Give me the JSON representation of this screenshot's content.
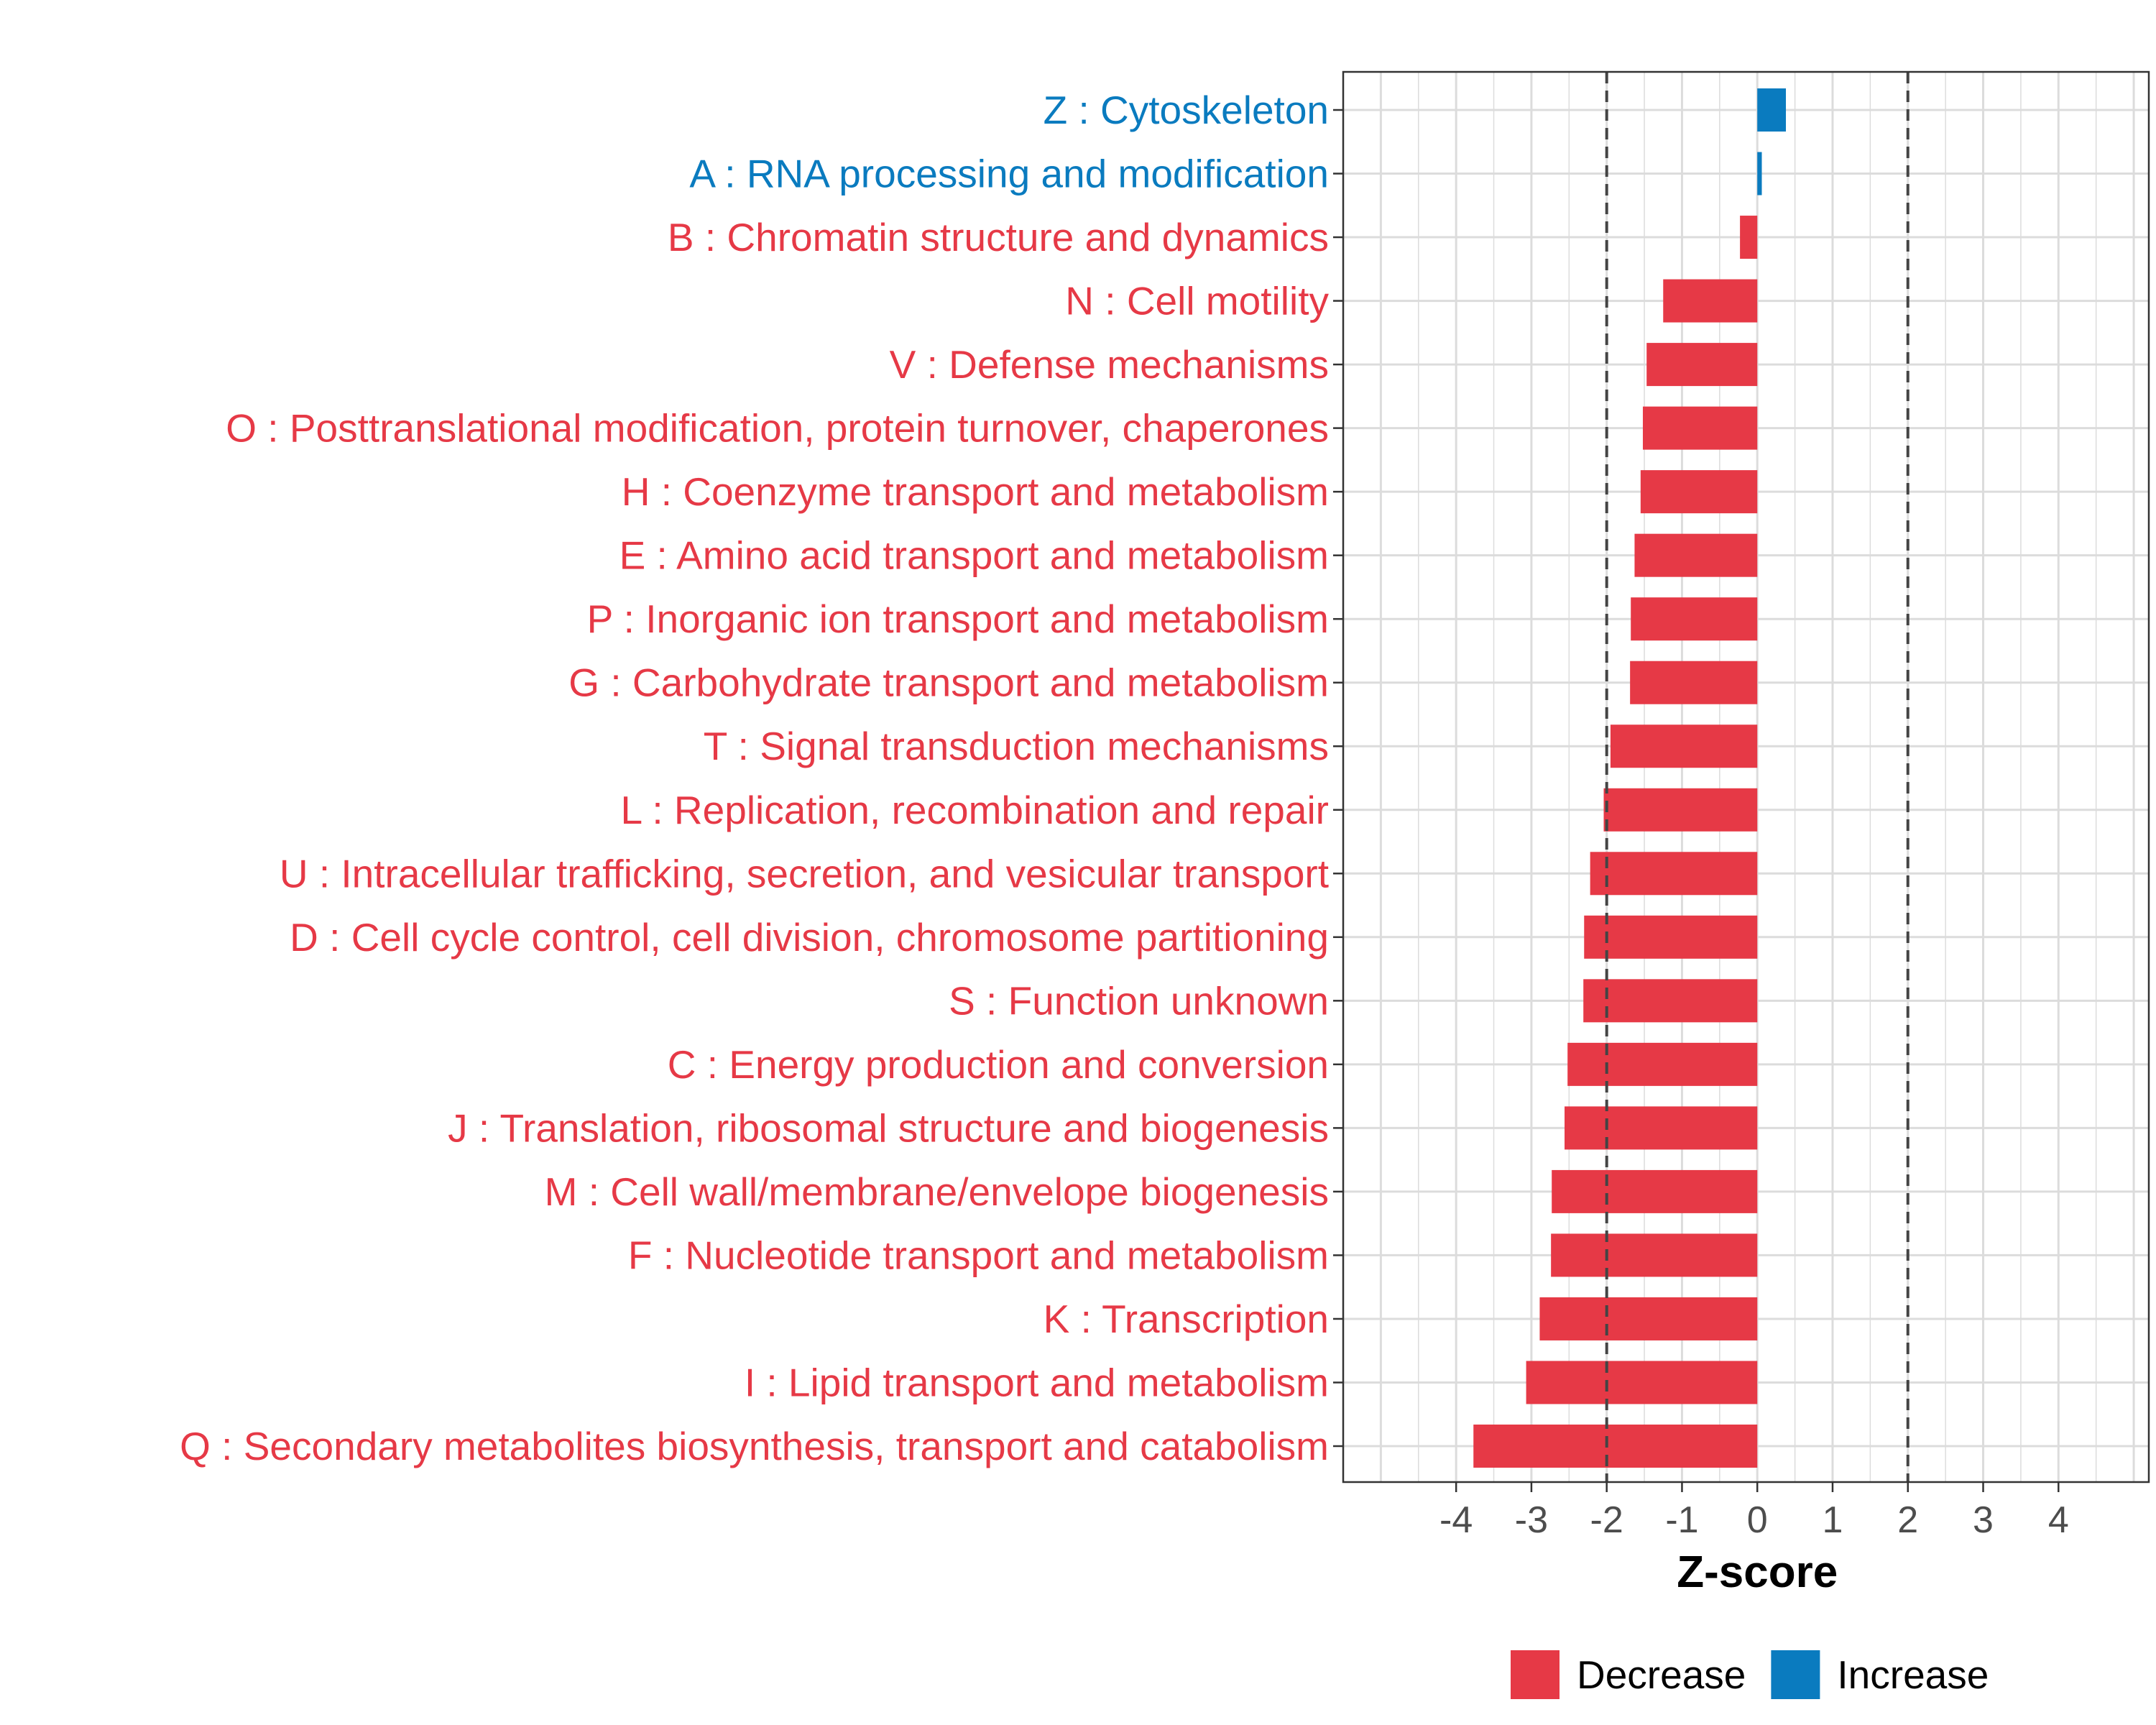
{
  "chart_data": {
    "type": "bar",
    "orientation": "horizontal",
    "xlabel": "Z-score",
    "xlim": [
      -5.5,
      5.2
    ],
    "xticks": [
      -4,
      -3,
      -2,
      -1,
      0,
      1,
      2,
      3,
      4
    ],
    "xtick_labels": [
      "-4",
      "-3",
      "-2",
      "-1",
      "0",
      "1",
      "2",
      "3",
      "4"
    ],
    "threshold_lines": [
      -2,
      2
    ],
    "grid": true,
    "colors": {
      "Decrease": "#E63946",
      "Increase": "#0A7BBF"
    },
    "categories": [
      "Z : Cytoskeleton",
      "A : RNA processing and modification",
      "B : Chromatin structure and dynamics",
      "N : Cell motility",
      "V : Defense mechanisms",
      "O : Posttranslational modification, protein turnover, chaperones",
      "H : Coenzyme transport and metabolism",
      "E : Amino acid transport and metabolism",
      "P : Inorganic ion transport and metabolism",
      "G : Carbohydrate transport and metabolism",
      "T : Signal transduction mechanisms",
      "L : Replication, recombination and repair",
      "U : Intracellular trafficking, secretion, and vesicular transport",
      "D : Cell cycle control, cell division, chromosome partitioning",
      "S : Function unknown",
      "C : Energy production and conversion",
      "J : Translation, ribosomal structure and biogenesis",
      "M : Cell wall/membrane/envelope biogenesis",
      "F : Nucleotide transport and metabolism",
      "K : Transcription",
      "I : Lipid transport and metabolism",
      "Q : Secondary metabolites biosynthesis, transport and catabolism"
    ],
    "values": [
      0.38,
      0.06,
      -0.23,
      -1.25,
      -1.47,
      -1.52,
      -1.55,
      -1.63,
      -1.68,
      -1.69,
      -1.95,
      -2.04,
      -2.22,
      -2.3,
      -2.31,
      -2.52,
      -2.56,
      -2.73,
      -2.74,
      -2.89,
      -3.07,
      -3.77
    ],
    "groups": [
      "Increase",
      "Increase",
      "Decrease",
      "Decrease",
      "Decrease",
      "Decrease",
      "Decrease",
      "Decrease",
      "Decrease",
      "Decrease",
      "Decrease",
      "Decrease",
      "Decrease",
      "Decrease",
      "Decrease",
      "Decrease",
      "Decrease",
      "Decrease",
      "Decrease",
      "Decrease",
      "Decrease",
      "Decrease"
    ],
    "legend": {
      "position": "bottom",
      "entries": [
        {
          "label": "Decrease",
          "group": "Decrease"
        },
        {
          "label": "Increase",
          "group": "Increase"
        }
      ]
    }
  }
}
